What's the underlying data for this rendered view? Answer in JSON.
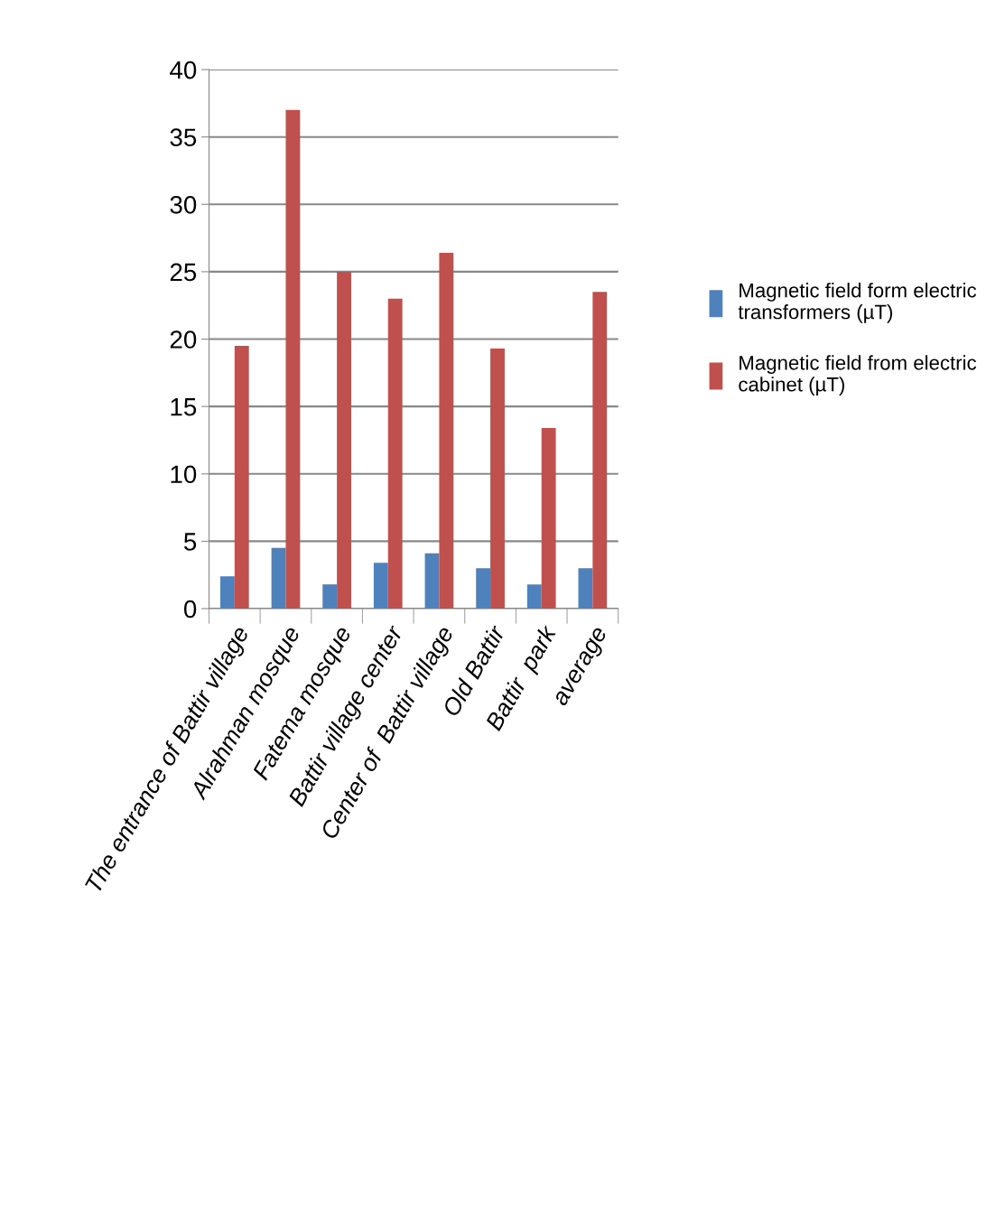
{
  "chart_data": {
    "type": "bar",
    "categories": [
      "The entrance of Battir village",
      "Alrahman mosque",
      "Fatema mosque",
      "Battir village center",
      "Center of  Battir village",
      "Old Battir",
      "Battir  park",
      "average"
    ],
    "series": [
      {
        "name": "Magnetic field form electric\ntransformers (µT)",
        "color": "#4f81bd",
        "values": [
          2.4,
          4.5,
          1.8,
          3.4,
          4.1,
          3.0,
          1.8,
          3.0
        ]
      },
      {
        "name": "Magnetic field from electric\ncabinet (µT)",
        "color": "#c0504d",
        "values": [
          19.5,
          37.0,
          25.0,
          23.0,
          26.4,
          19.3,
          13.4,
          23.5
        ]
      }
    ],
    "ylim": [
      0,
      40
    ],
    "yticks": [
      0,
      5,
      10,
      15,
      20,
      25,
      30,
      35,
      40
    ],
    "grid": "y",
    "legend": "right"
  }
}
